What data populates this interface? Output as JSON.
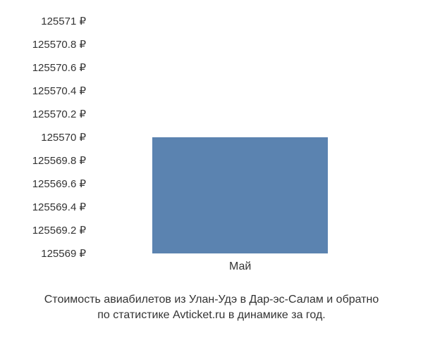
{
  "chart": {
    "type": "bar",
    "background_color": "#ffffff",
    "text_color": "#333333",
    "font_family": "Arial, sans-serif",
    "y_axis": {
      "ticks": [
        {
          "value": 125569,
          "label": "125569 ₽"
        },
        {
          "value": 125569.2,
          "label": "125569.2 ₽"
        },
        {
          "value": 125569.4,
          "label": "125569.4 ₽"
        },
        {
          "value": 125569.6,
          "label": "125569.6 ₽"
        },
        {
          "value": 125569.8,
          "label": "125569.8 ₽"
        },
        {
          "value": 125570,
          "label": "125570 ₽"
        },
        {
          "value": 125570.2,
          "label": "125570.2 ₽"
        },
        {
          "value": 125570.4,
          "label": "125570.4 ₽"
        },
        {
          "value": 125570.6,
          "label": "125570.6 ₽"
        },
        {
          "value": 125570.8,
          "label": "125570.8 ₽"
        },
        {
          "value": 125571,
          "label": "125571 ₽"
        }
      ],
      "min": 125569,
      "max": 125571,
      "fontsize": 15
    },
    "x_axis": {
      "categories": [
        "Май"
      ],
      "fontsize": 16
    },
    "bars": [
      {
        "category": "Май",
        "value": 125570,
        "color": "#5b83b0",
        "width_fraction": 0.58,
        "center_fraction": 0.49
      }
    ],
    "caption": {
      "line1": "Стоимость авиабилетов из Улан-Удэ в Дар-эс-Салам и обратно",
      "line2": "по статистике Avticket.ru в динамике за год.",
      "fontsize": 16
    }
  }
}
